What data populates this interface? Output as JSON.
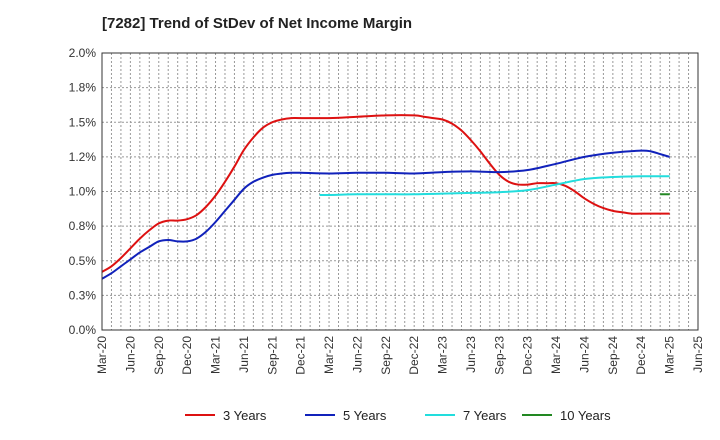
{
  "chart_data": {
    "type": "line",
    "title": "[7282]  Trend of StDev of Net Income Margin",
    "xlabel": "",
    "ylabel": "",
    "x_tick_labels": [
      "Mar-20",
      "Jun-20",
      "Sep-20",
      "Dec-20",
      "Mar-21",
      "Jun-21",
      "Sep-21",
      "Dec-21",
      "Mar-22",
      "Jun-22",
      "Sep-22",
      "Dec-22",
      "Mar-23",
      "Jun-23",
      "Sep-23",
      "Dec-23",
      "Mar-24",
      "Jun-24",
      "Sep-24",
      "Dec-24",
      "Mar-25",
      "Jun-25"
    ],
    "y_tick_labels": [
      "0.0%",
      "0.3%",
      "0.5%",
      "0.8%",
      "1.0%",
      "1.2%",
      "1.5%",
      "1.8%",
      "2.0%"
    ],
    "ylim": [
      0,
      2.0
    ],
    "y_unit": "%",
    "grid": true,
    "legend_position": "bottom",
    "series": [
      {
        "name": "3 Years",
        "color": "#dd1111",
        "x": [
          "Mar-20",
          "Apr-20",
          "May-20",
          "Jun-20",
          "Jul-20",
          "Aug-20",
          "Sep-20",
          "Oct-20",
          "Nov-20",
          "Dec-20",
          "Jan-21",
          "Feb-21",
          "Mar-21",
          "Apr-21",
          "May-21",
          "Jun-21",
          "Jul-21",
          "Aug-21",
          "Sep-21",
          "Oct-21",
          "Nov-21",
          "Dec-21",
          "Mar-22",
          "Jun-22",
          "Sep-22",
          "Dec-22",
          "Jan-23",
          "Feb-23",
          "Mar-23",
          "Apr-23",
          "May-23",
          "Jun-23",
          "Jul-23",
          "Aug-23",
          "Sep-23",
          "Oct-23",
          "Nov-23",
          "Dec-23",
          "Jan-24",
          "Feb-24",
          "Mar-24",
          "Apr-24",
          "May-24",
          "Jun-24",
          "Jul-24",
          "Aug-24",
          "Sep-24",
          "Oct-24",
          "Nov-24",
          "Dec-24",
          "Mar-25"
        ],
        "values": [
          0.42,
          0.46,
          0.52,
          0.59,
          0.66,
          0.72,
          0.77,
          0.79,
          0.79,
          0.8,
          0.83,
          0.89,
          0.97,
          1.07,
          1.18,
          1.3,
          1.39,
          1.46,
          1.5,
          1.52,
          1.53,
          1.53,
          1.53,
          1.54,
          1.55,
          1.55,
          1.54,
          1.53,
          1.52,
          1.49,
          1.44,
          1.37,
          1.29,
          1.2,
          1.12,
          1.07,
          1.05,
          1.05,
          1.06,
          1.06,
          1.06,
          1.04,
          1.0,
          0.95,
          0.91,
          0.88,
          0.86,
          0.85,
          0.84,
          0.84,
          0.84
        ]
      },
      {
        "name": "5 Years",
        "color": "#1122bb",
        "x": [
          "Mar-20",
          "Apr-20",
          "May-20",
          "Jun-20",
          "Jul-20",
          "Aug-20",
          "Sep-20",
          "Oct-20",
          "Nov-20",
          "Dec-20",
          "Jan-21",
          "Feb-21",
          "Mar-21",
          "Apr-21",
          "May-21",
          "Jun-21",
          "Jul-21",
          "Aug-21",
          "Sep-21",
          "Oct-21",
          "Nov-21",
          "Dec-21",
          "Mar-22",
          "Jun-22",
          "Sep-22",
          "Dec-22",
          "Mar-23",
          "Jun-23",
          "Sep-23",
          "Dec-23",
          "Mar-24",
          "Jun-24",
          "Sep-24",
          "Dec-24",
          "Jan-25",
          "Feb-25",
          "Mar-25"
        ],
        "values": [
          0.37,
          0.41,
          0.46,
          0.51,
          0.56,
          0.6,
          0.64,
          0.65,
          0.64,
          0.64,
          0.66,
          0.71,
          0.78,
          0.86,
          0.94,
          1.02,
          1.07,
          1.1,
          1.12,
          1.13,
          1.135,
          1.135,
          1.13,
          1.135,
          1.135,
          1.13,
          1.14,
          1.145,
          1.14,
          1.155,
          1.2,
          1.25,
          1.28,
          1.295,
          1.29,
          1.27,
          1.25
        ]
      },
      {
        "name": "7 Years",
        "color": "#22dddd",
        "x": [
          "Feb-22",
          "Mar-22",
          "Jun-22",
          "Sep-22",
          "Dec-22",
          "Mar-23",
          "Jun-23",
          "Sep-23",
          "Dec-23",
          "Mar-24",
          "Jun-24",
          "Sep-24",
          "Dec-24",
          "Mar-25"
        ],
        "values": [
          0.975,
          0.975,
          0.98,
          0.98,
          0.98,
          0.985,
          0.99,
          0.995,
          1.01,
          1.05,
          1.09,
          1.105,
          1.11,
          1.11
        ]
      },
      {
        "name": "10 Years",
        "color": "#228822",
        "x": [
          "Feb-25",
          "Mar-25"
        ],
        "values": [
          0.98,
          0.98
        ]
      }
    ]
  }
}
